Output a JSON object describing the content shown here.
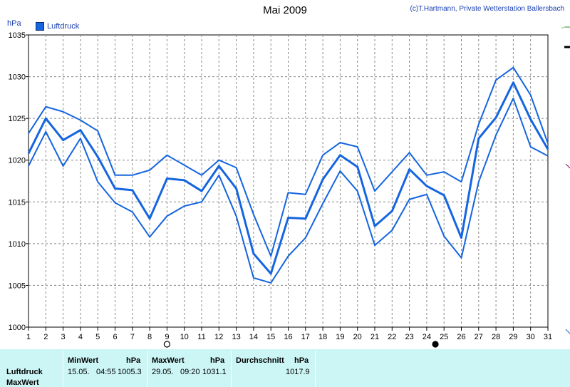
{
  "header": {
    "title": "Mai 2009",
    "credit": "(c)T.Hartmann, Private Wetterstation Ballersbach",
    "unit": "hPa",
    "legend": "Luftdruck"
  },
  "chart_data": {
    "type": "line",
    "title": "Mai 2009",
    "ylabel": "hPa",
    "ylim": [
      1000,
      1035
    ],
    "xlim": [
      1,
      31
    ],
    "grid": true,
    "legend_position": "top-left",
    "x": [
      1,
      2,
      3,
      4,
      5,
      6,
      7,
      8,
      9,
      10,
      11,
      12,
      13,
      14,
      15,
      16,
      17,
      18,
      19,
      20,
      21,
      22,
      23,
      24,
      25,
      26,
      27,
      28,
      29,
      30,
      31
    ],
    "yticks": [
      1000,
      1005,
      1010,
      1015,
      1020,
      1025,
      1030,
      1035
    ],
    "series": [
      {
        "name": "Luftdruck",
        "color": "#1565e0",
        "values": [
          1020.8,
          1025.0,
          1022.4,
          1023.6,
          1020.4,
          1016.6,
          1016.4,
          1013.0,
          1017.8,
          1017.6,
          1016.3,
          1019.3,
          1016.6,
          1008.8,
          1006.4,
          1013.1,
          1013.0,
          1017.7,
          1020.6,
          1019.2,
          1012.1,
          1013.9,
          1018.9,
          1016.9,
          1015.8,
          1010.7,
          1022.6,
          1025.1,
          1029.3,
          1024.9,
          1021.3
        ]
      },
      {
        "color": "#1565e0",
        "values": [
          1023.2,
          1026.4,
          1025.8,
          1024.8,
          1023.5,
          1018.2,
          1018.2,
          1018.8,
          1020.6,
          1019.4,
          1018.2,
          1020.0,
          1019.1,
          1013.5,
          1008.5,
          1016.1,
          1015.9,
          1020.6,
          1022.1,
          1021.6,
          1016.3,
          1018.6,
          1020.9,
          1018.2,
          1018.6,
          1017.4,
          1024.3,
          1029.6,
          1031.1,
          1027.8,
          1022.0
        ]
      },
      {
        "color": "#1565e0",
        "values": [
          1019.3,
          1023.4,
          1019.3,
          1022.6,
          1017.4,
          1014.9,
          1013.8,
          1010.8,
          1013.3,
          1014.5,
          1015.0,
          1018.2,
          1013.3,
          1005.9,
          1005.3,
          1008.5,
          1010.7,
          1014.8,
          1018.7,
          1016.3,
          1009.8,
          1011.6,
          1015.3,
          1015.9,
          1010.9,
          1008.3,
          1017.4,
          1023.0,
          1027.4,
          1021.6,
          1020.5
        ]
      }
    ],
    "markers": [
      {
        "x": 9,
        "symbol": "empty-circle"
      },
      {
        "x": 24.5,
        "symbol": "filled-circle"
      }
    ]
  },
  "stats": {
    "row_label": "Luftdruck",
    "row_label_2": "MaxWert",
    "min": {
      "header": "MinWert",
      "unit": "hPa",
      "date": "15.05.",
      "time": "04:55",
      "value": "1005.3"
    },
    "max": {
      "header": "MaxWert",
      "unit": "hPa",
      "date": "29.05.",
      "time": "09:20",
      "value": "1031.1"
    },
    "avg": {
      "header": "Durchschnitt",
      "unit": "hPa",
      "value": "1017.9"
    }
  },
  "colors": {
    "line": "#1565e0",
    "grid": "#888888",
    "stats_background": "#ccf5f5",
    "text_accent": "#1a3fb0"
  }
}
